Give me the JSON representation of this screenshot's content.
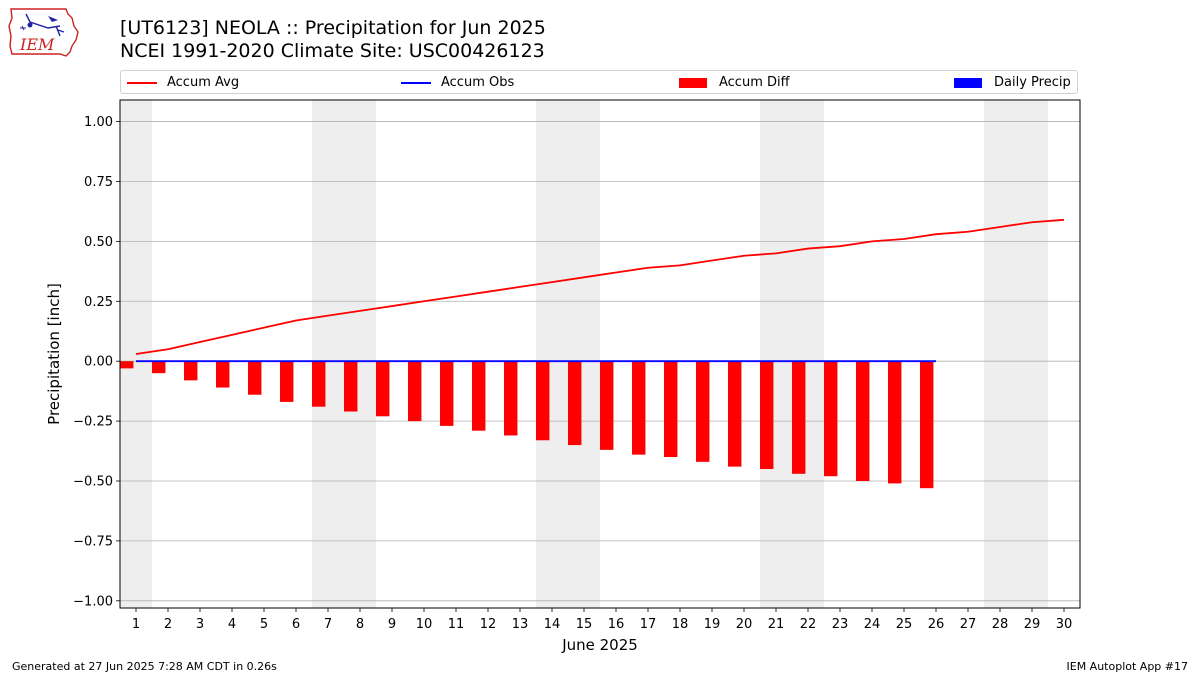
{
  "header": {
    "title_line1": "[UT6123] NEOLA :: Precipitation for Jun 2025",
    "title_line2": "NCEI 1991-2020 Climate Site: USC00426123"
  },
  "logo": {
    "text": "IEM",
    "icon": "iem-state-logo",
    "color": "#cc2222"
  },
  "legend": {
    "placement": "top",
    "items": [
      {
        "label": "Accum Avg",
        "kind": "line",
        "color": "#ff0000"
      },
      {
        "label": "Accum Obs",
        "kind": "line",
        "color": "#0000ff"
      },
      {
        "label": "Accum Diff",
        "kind": "box",
        "color": "#ff0000"
      },
      {
        "label": "Daily Precip",
        "kind": "box",
        "color": "#0000ff"
      }
    ]
  },
  "chart_data": {
    "type": "bar",
    "xlabel": "June 2025",
    "ylabel": "Precipitation [inch]",
    "ylim": [
      -1.03,
      1.09
    ],
    "xlim": [
      0.5,
      30.5
    ],
    "yticks": [
      -1.0,
      -0.75,
      -0.5,
      -0.25,
      0.0,
      0.25,
      0.5,
      0.75,
      1.0
    ],
    "ytick_labels": [
      "−1.00",
      "−0.75",
      "−0.50",
      "−0.25",
      "0.00",
      "0.25",
      "0.50",
      "0.75",
      "1.00"
    ],
    "xticks": [
      1,
      2,
      3,
      4,
      5,
      6,
      7,
      8,
      9,
      10,
      11,
      12,
      13,
      14,
      15,
      16,
      17,
      18,
      19,
      20,
      21,
      22,
      23,
      24,
      25,
      26,
      27,
      28,
      29,
      30
    ],
    "grid": "y",
    "weekend_shading": [
      [
        0.5,
        1.5
      ],
      [
        6.5,
        8.5
      ],
      [
        13.5,
        15.5
      ],
      [
        20.5,
        22.5
      ],
      [
        27.5,
        29.5
      ]
    ],
    "series": [
      {
        "name": "Accum Avg",
        "kind": "line",
        "color": "#ff0000",
        "x": [
          1,
          2,
          3,
          4,
          5,
          6,
          7,
          8,
          9,
          10,
          11,
          12,
          13,
          14,
          15,
          16,
          17,
          18,
          19,
          20,
          21,
          22,
          23,
          24,
          25,
          26,
          27,
          28,
          29,
          30
        ],
        "values": [
          0.03,
          0.05,
          0.08,
          0.11,
          0.14,
          0.17,
          0.19,
          0.21,
          0.23,
          0.25,
          0.27,
          0.29,
          0.31,
          0.33,
          0.35,
          0.37,
          0.39,
          0.4,
          0.42,
          0.44,
          0.45,
          0.47,
          0.48,
          0.5,
          0.51,
          0.53,
          0.54,
          0.56,
          0.58,
          0.59
        ]
      },
      {
        "name": "Accum Obs",
        "kind": "line",
        "color": "#0000ff",
        "x": [
          1,
          2,
          3,
          4,
          5,
          6,
          7,
          8,
          9,
          10,
          11,
          12,
          13,
          14,
          15,
          16,
          17,
          18,
          19,
          20,
          21,
          22,
          23,
          24,
          25,
          26
        ],
        "values": [
          0,
          0,
          0,
          0,
          0,
          0,
          0,
          0,
          0,
          0,
          0,
          0,
          0,
          0,
          0,
          0,
          0,
          0,
          0,
          0,
          0,
          0,
          0,
          0,
          0,
          0
        ]
      },
      {
        "name": "Accum Diff",
        "kind": "bar",
        "color": "#ff0000",
        "x": [
          1,
          2,
          3,
          4,
          5,
          6,
          7,
          8,
          9,
          10,
          11,
          12,
          13,
          14,
          15,
          16,
          17,
          18,
          19,
          20,
          21,
          22,
          23,
          24,
          25,
          26
        ],
        "values": [
          -0.03,
          -0.05,
          -0.08,
          -0.11,
          -0.14,
          -0.17,
          -0.19,
          -0.21,
          -0.23,
          -0.25,
          -0.27,
          -0.29,
          -0.31,
          -0.33,
          -0.35,
          -0.37,
          -0.39,
          -0.4,
          -0.42,
          -0.44,
          -0.45,
          -0.47,
          -0.48,
          -0.5,
          -0.51,
          -0.53
        ]
      },
      {
        "name": "Daily Precip",
        "kind": "bar",
        "color": "#0000ff",
        "x": [
          1,
          2,
          3,
          4,
          5,
          6,
          7,
          8,
          9,
          10,
          11,
          12,
          13,
          14,
          15,
          16,
          17,
          18,
          19,
          20,
          21,
          22,
          23,
          24,
          25,
          26
        ],
        "values": [
          0,
          0,
          0,
          0,
          0,
          0,
          0,
          0,
          0,
          0,
          0,
          0,
          0,
          0,
          0,
          0,
          0,
          0,
          0,
          0,
          0,
          0,
          0,
          0,
          0,
          0
        ]
      }
    ]
  },
  "footer": {
    "generated": "Generated at 27 Jun 2025 7:28 AM CDT in 0.26s",
    "app": "IEM Autoplot App #17"
  }
}
